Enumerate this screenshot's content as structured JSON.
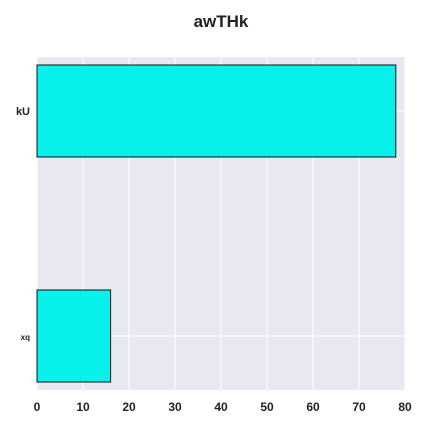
{
  "chart_data": {
    "type": "bar",
    "orientation": "horizontal",
    "title": "awTHk",
    "categories": [
      "kU",
      "xq"
    ],
    "values": [
      78,
      16
    ],
    "xlim": [
      0,
      80
    ],
    "xticks": [
      "0",
      "10",
      "20",
      "30",
      "40",
      "50",
      "60",
      "70",
      "80"
    ],
    "grid": true,
    "xlabel": "",
    "ylabel": "",
    "colors": {
      "bar": "#08f0ec",
      "bar_edge": "#111111",
      "plot_background": "#e8e8f0",
      "grid": "#ffffff",
      "text": "#222222"
    }
  }
}
